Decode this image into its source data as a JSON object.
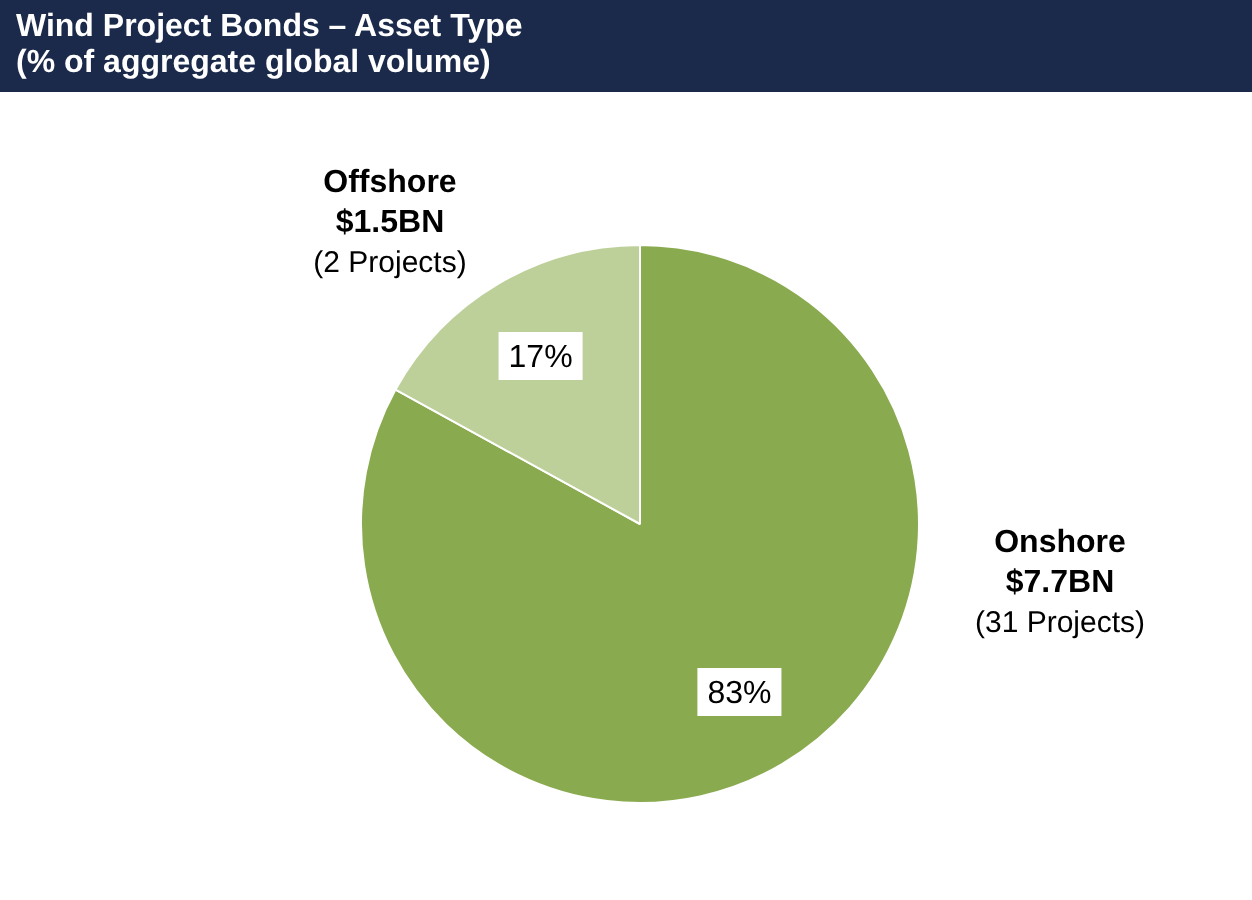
{
  "chart_data": {
    "type": "pie",
    "title": "Wind Project Bonds – Asset Type",
    "subtitle": "(% of aggregate global volume)",
    "categories": [
      "Onshore",
      "Offshore"
    ],
    "values": [
      83,
      17
    ],
    "colors": [
      "#8aaa4f",
      "#bdd09a"
    ],
    "value_labels": [
      "83%",
      "17%"
    ],
    "annotations": [
      "$7.7BN",
      "(31 Projects)",
      "$1.5BN",
      "(2 Projects)"
    ],
    "legend": false
  }
}
